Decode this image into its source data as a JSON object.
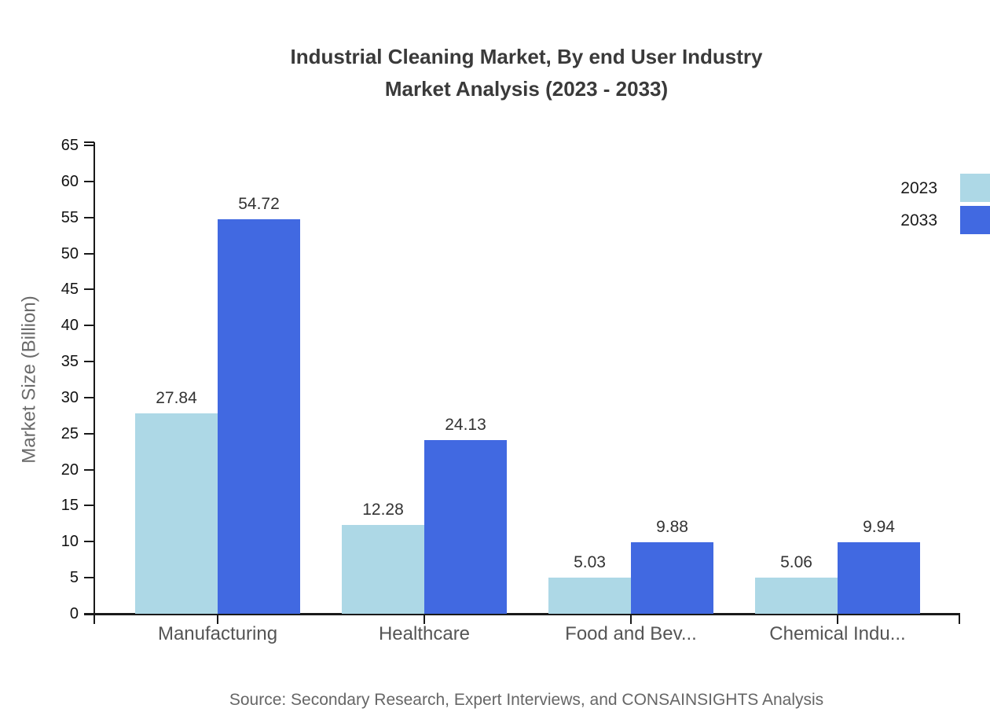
{
  "title": {
    "line1": "Industrial Cleaning Market, By end User Industry",
    "line2": "Market Analysis (2023 - 2033)"
  },
  "y_axis_label": "Market Size (Billion)",
  "source": "Source: Secondary Research, Expert Interviews, and CONSAINSIGHTS Analysis",
  "legend": {
    "items": [
      {
        "label": "2023",
        "color": "#add8e6"
      },
      {
        "label": "2033",
        "color": "#4169e1"
      }
    ]
  },
  "colors": {
    "series_2023": "#add8e6",
    "series_2033": "#4169e1",
    "axis": "#1a1a1a",
    "title_text": "#3a3a3a",
    "category_text": "#555555",
    "value_text": "#333333",
    "muted_text": "#666666"
  },
  "chart_data": {
    "type": "bar",
    "categories": [
      "Manufacturing",
      "Healthcare",
      "Food and Bev...",
      "Chemical Indu..."
    ],
    "series": [
      {
        "name": "2023",
        "color": "#add8e6",
        "values": [
          27.84,
          12.28,
          5.03,
          5.06
        ]
      },
      {
        "name": "2033",
        "color": "#4169e1",
        "values": [
          54.72,
          24.13,
          9.88,
          9.94
        ]
      }
    ],
    "title": "Industrial Cleaning Market, By end User Industry Market Analysis (2023 - 2033)",
    "xlabel": "",
    "ylabel": "Market Size (Billion)",
    "ylim": [
      0,
      65
    ],
    "ytick_step": 5,
    "grid": false,
    "legend_position": "top-right",
    "value_labels": true,
    "value_label_decimals": 2
  }
}
